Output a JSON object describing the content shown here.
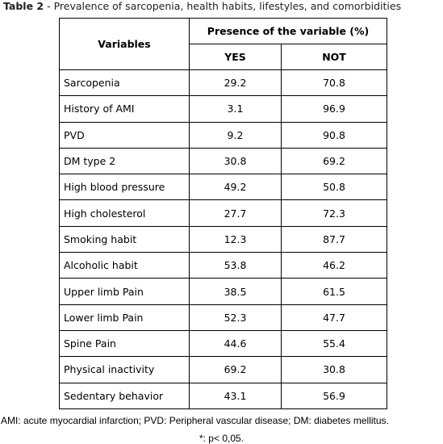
{
  "title": {
    "label": "Table 2",
    "text": "- Prevalence of sarcopenia, health habits, lifestyles, and comorbidities"
  },
  "table": {
    "header": {
      "variables": "Variables",
      "group": "Presence of the variable (%)",
      "yes": "YES",
      "not": "NOT"
    },
    "rows": [
      [
        "Sarcopenia",
        "29.2",
        "70.8"
      ],
      [
        "History of AMI",
        "3.1",
        "96.9"
      ],
      [
        "PVD",
        "9.2",
        "90.8"
      ],
      [
        "DM type 2",
        "30.8",
        "69.2"
      ],
      [
        "High blood pressure",
        "49.2",
        "50.8"
      ],
      [
        "High cholesterol",
        "27.7",
        "72.3"
      ],
      [
        "Smoking habit",
        "12.3",
        "87.7"
      ],
      [
        "Alcoholic habit",
        "53.8",
        "46.2"
      ],
      [
        "Upper limb Pain",
        "38.5",
        "61.5"
      ],
      [
        "Lower limb Pain",
        "52.3",
        "47.7"
      ],
      [
        "Spine Pain",
        "44.6",
        "55.4"
      ],
      [
        "Physical inactivity",
        "69.2",
        "30.8"
      ],
      [
        "Sedentary behavior",
        "43.1",
        "56.9"
      ]
    ]
  },
  "footnotes": [
    "AMI: acute myocardial infarction; PVD: Peripheral vascular disease; DM: diabetes mellitus.",
    "*: p< 0,05."
  ]
}
